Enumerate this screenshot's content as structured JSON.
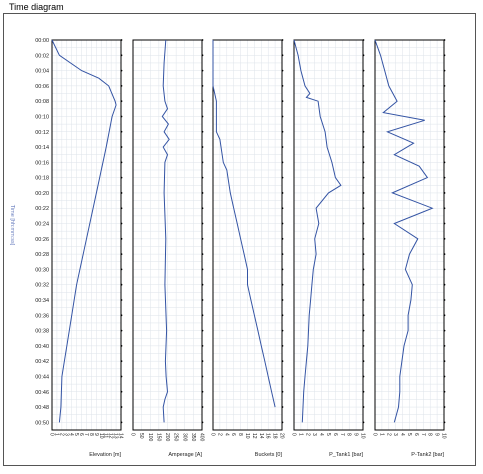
{
  "title": "Time diagram",
  "colors": {
    "series": "#3454a4",
    "axis_title": "#6a7fbf",
    "grid": "#dde3ea",
    "frame": "#000000"
  },
  "time_axis": {
    "label": "Time [hh:mm:ss]",
    "ticks": [
      "00:00",
      "00:02",
      "00:04",
      "00:06",
      "00:08",
      "00:10",
      "00:12",
      "00:14",
      "00:16",
      "00:18",
      "00:20",
      "00:22",
      "00:24",
      "00:26",
      "00:28",
      "00:30",
      "00:32",
      "00:34",
      "00:36",
      "00:38",
      "00:40",
      "00:42",
      "00:44",
      "00:46",
      "00:48",
      "00:50"
    ],
    "range_min": [
      0,
      51
    ]
  },
  "chart_data": [
    {
      "type": "line",
      "xlabel": "Elevation [m]",
      "xlim": [
        0,
        14
      ],
      "ticks": [
        0,
        1,
        2,
        3,
        4,
        5,
        6,
        7,
        8,
        9,
        10,
        11,
        12,
        13,
        14
      ],
      "series": [
        {
          "t": [
            0,
            2,
            4,
            5,
            6,
            8,
            8.5,
            10,
            14,
            20,
            26,
            32,
            38,
            44,
            48,
            50
          ],
          "x": [
            0,
            1.5,
            6,
            9.5,
            11.5,
            12.8,
            13,
            12.2,
            11,
            9,
            7,
            5,
            3.5,
            2,
            1.8,
            1.5
          ]
        }
      ]
    },
    {
      "type": "line",
      "xlabel": "Amperage [A]",
      "xlim": [
        0,
        400
      ],
      "ticks": [
        0,
        50,
        100,
        150,
        200,
        250,
        300,
        350,
        400
      ],
      "series": [
        {
          "t": [
            0,
            3,
            6,
            8,
            9,
            10,
            11,
            12,
            13,
            14,
            15,
            16,
            20,
            26,
            32,
            38,
            42,
            44,
            46,
            47,
            48,
            50
          ],
          "x": [
            190,
            180,
            175,
            185,
            200,
            170,
            205,
            180,
            210,
            175,
            200,
            185,
            180,
            190,
            185,
            195,
            188,
            192,
            200,
            185,
            175,
            180
          ]
        }
      ]
    },
    {
      "type": "line",
      "xlabel": "Buckets [0]",
      "xlim": [
        0,
        20
      ],
      "ticks": [
        0,
        2,
        4,
        6,
        8,
        10,
        12,
        14,
        16,
        18,
        20
      ],
      "series": [
        {
          "t": [
            0,
            6,
            8,
            12,
            13,
            16,
            17,
            20,
            22,
            24,
            26,
            28,
            30,
            32,
            34,
            36,
            38,
            40,
            42,
            44,
            46,
            48
          ],
          "x": [
            0,
            0,
            1,
            1,
            2,
            3,
            4,
            5,
            6,
            7,
            8,
            9,
            10,
            10,
            11,
            12,
            13,
            14,
            15,
            16,
            17,
            18
          ]
        }
      ]
    },
    {
      "type": "line",
      "xlabel": "P_Tank1 [bar]",
      "xlim": [
        0,
        10
      ],
      "ticks": [
        0,
        1,
        2,
        3,
        4,
        5,
        6,
        7,
        8,
        9,
        10
      ],
      "series": [
        {
          "t": [
            0,
            2,
            4,
            6,
            7,
            7.5,
            8,
            10,
            12,
            14,
            16,
            18,
            19,
            20,
            22,
            24,
            26,
            28,
            30,
            32,
            34,
            36,
            38,
            40,
            42,
            44,
            46,
            48,
            50
          ],
          "x": [
            0,
            0.6,
            1,
            1.6,
            2.3,
            1.8,
            3.5,
            3.8,
            4.5,
            4.8,
            5.5,
            6,
            6.8,
            5,
            3.2,
            3.6,
            3,
            3.2,
            2.8,
            2.6,
            2.4,
            2.2,
            2.1,
            2,
            1.8,
            1.6,
            1.4,
            1.3,
            1.2
          ]
        }
      ]
    },
    {
      "type": "line",
      "xlabel": "P-Tank2 [bar]",
      "xlim": [
        0,
        10
      ],
      "ticks": [
        0,
        1,
        2,
        3,
        4,
        5,
        6,
        7,
        8,
        9,
        10
      ],
      "series": [
        {
          "t": [
            0,
            2,
            4,
            6,
            8,
            9.5,
            10.5,
            12,
            13.5,
            15,
            16.5,
            18,
            20,
            22,
            24,
            26,
            28,
            30,
            32,
            34,
            36,
            38,
            40,
            42,
            44,
            46,
            48,
            50
          ],
          "x": [
            0,
            0.8,
            1.4,
            2,
            3.2,
            1.2,
            7.2,
            1.8,
            5.6,
            2.8,
            6.4,
            7.6,
            2.5,
            8.3,
            2.8,
            6.2,
            5,
            4.4,
            5.4,
            5.2,
            4.8,
            4.8,
            4.2,
            3.9,
            3.6,
            3.6,
            3.4,
            2.8
          ]
        }
      ]
    }
  ]
}
